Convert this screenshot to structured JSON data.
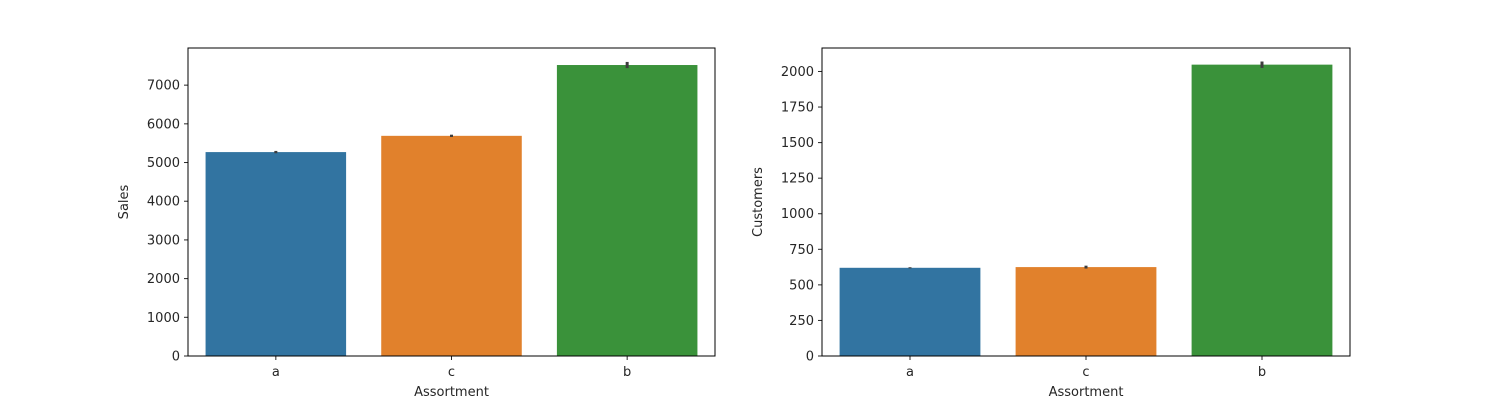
{
  "chart_data": [
    {
      "type": "bar",
      "categories": [
        "a",
        "c",
        "b"
      ],
      "values": [
        5270,
        5690,
        7520
      ],
      "error_bars": [
        [
          5240,
          5300
        ],
        [
          5660,
          5720
        ],
        [
          7440,
          7600
        ]
      ],
      "colors": [
        "#3274a1",
        "#e1812c",
        "#3a923a"
      ],
      "xlabel": "Assortment",
      "ylabel": "Sales",
      "ylim": [
        0,
        7960
      ],
      "yticks": [
        0,
        1000,
        2000,
        3000,
        4000,
        5000,
        6000,
        7000
      ],
      "grid": false
    },
    {
      "type": "bar",
      "categories": [
        "a",
        "c",
        "b"
      ],
      "values": [
        620,
        625,
        2048
      ],
      "error_bars": [
        [
          616,
          624
        ],
        [
          615,
          635
        ],
        [
          2025,
          2070
        ]
      ],
      "colors": [
        "#3274a1",
        "#e1812c",
        "#3a923a"
      ],
      "xlabel": "Assortment",
      "ylabel": "Customers",
      "ylim": [
        0,
        2165
      ],
      "yticks": [
        0,
        250,
        500,
        750,
        1000,
        1250,
        1500,
        1750,
        2000
      ],
      "grid": false
    }
  ]
}
